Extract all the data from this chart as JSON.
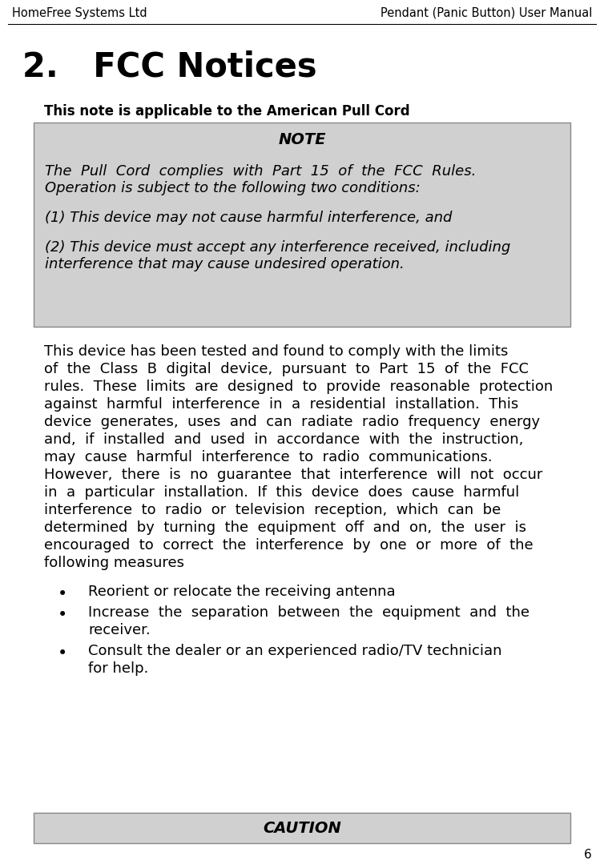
{
  "header_left": "HomeFree Systems Ltd",
  "header_right": "Pendant (Panic Button) User Manual",
  "header_fontsize": 10.5,
  "section_number": "2.",
  "section_title": "FCC Notices",
  "section_fontsize": 30,
  "subtitle": "This note is applicable to the American Pull Cord",
  "subtitle_fontsize": 12,
  "note_title": "NOTE",
  "note_bg": "#d0d0d0",
  "note_border": "#888888",
  "note_fontsize": 13,
  "body_fontsize": 13,
  "caution_title": "CAUTION",
  "page_number": "6",
  "bg_color": "#ffffff",
  "text_color": "#000000",
  "caution_bg": "#d0d0d0",
  "body_lines": [
    "This device has been tested and found to comply with the limits",
    "of  the  Class  B  digital  device,  pursuant  to  Part  15  of  the  FCC",
    "rules.  These  limits  are  designed  to  provide  reasonable  protection",
    "against  harmful  interference  in  a  residential  installation.  This",
    "device  generates,  uses  and  can  radiate  radio  frequency  energy",
    "and,  if  installed  and  used  in  accordance  with  the  instruction,",
    "may  cause  harmful  interference  to  radio  communications.",
    "However,  there  is  no  guarantee  that  interference  will  not  occur",
    "in  a  particular  installation.  If  this  device  does  cause  harmful",
    "interference  to  radio  or  television  reception,  which  can  be",
    "determined  by  turning  the  equipment  off  and  on,  the  user  is",
    "encouraged  to  correct  the  interference  by  one  or  more  of  the",
    "following measures"
  ],
  "note_lines": [
    [
      "The  Pull  Cord  complies  with  Part  15  of  the  FCC  Rules.",
      "Operation is subject to the following two conditions:"
    ],
    [
      "(1) This device may not cause harmful interference, and"
    ],
    [
      "(2) This device must accept any interference received, including",
      "interference that may cause undesired operation."
    ]
  ],
  "bullets": [
    [
      "Reorient or relocate the receiving antenna"
    ],
    [
      "Increase  the  separation  between  the  equipment  and  the",
      "receiver."
    ],
    [
      "Consult the dealer or an experienced radio/TV technician",
      "for help."
    ]
  ]
}
